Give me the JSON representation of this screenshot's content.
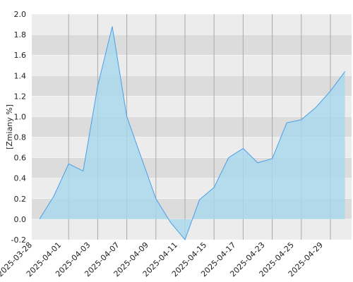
{
  "chart_data": {
    "type": "area",
    "y_label": "[Zmiany %]",
    "categories": [
      "2025-03-28",
      null,
      "2025-04-01",
      null,
      "2025-04-03",
      null,
      "2025-04-07",
      null,
      "2025-04-09",
      null,
      "2025-04-11",
      null,
      "2025-04-15",
      null,
      "2025-04-17",
      null,
      "2025-04-23",
      null,
      "2025-04-25",
      null,
      "2025-04-29",
      null
    ],
    "values": [
      0,
      0.23,
      0.54,
      0.47,
      1.3,
      1.88,
      1.0,
      0.6,
      0.2,
      -0.03,
      -0.2,
      0.19,
      0.31,
      0.6,
      0.69,
      0.55,
      0.59,
      0.94,
      0.97,
      1.09,
      1.25,
      1.44
    ],
    "color": "#4a9ee8",
    "fill": "#a8d8ee",
    "ylim": [
      -0.2,
      2.0
    ],
    "yticks": [
      {
        "value": -0.2,
        "label": "-0.2"
      },
      {
        "value": 0,
        "label": "0.0"
      },
      0.2,
      0.4,
      0.6,
      0.8,
      {
        "value": 1,
        "label": "1.0"
      },
      1.2,
      1.4,
      1.6,
      1.8,
      {
        "value": 2,
        "label": "2.0"
      }
    ],
    "grid": true
  }
}
